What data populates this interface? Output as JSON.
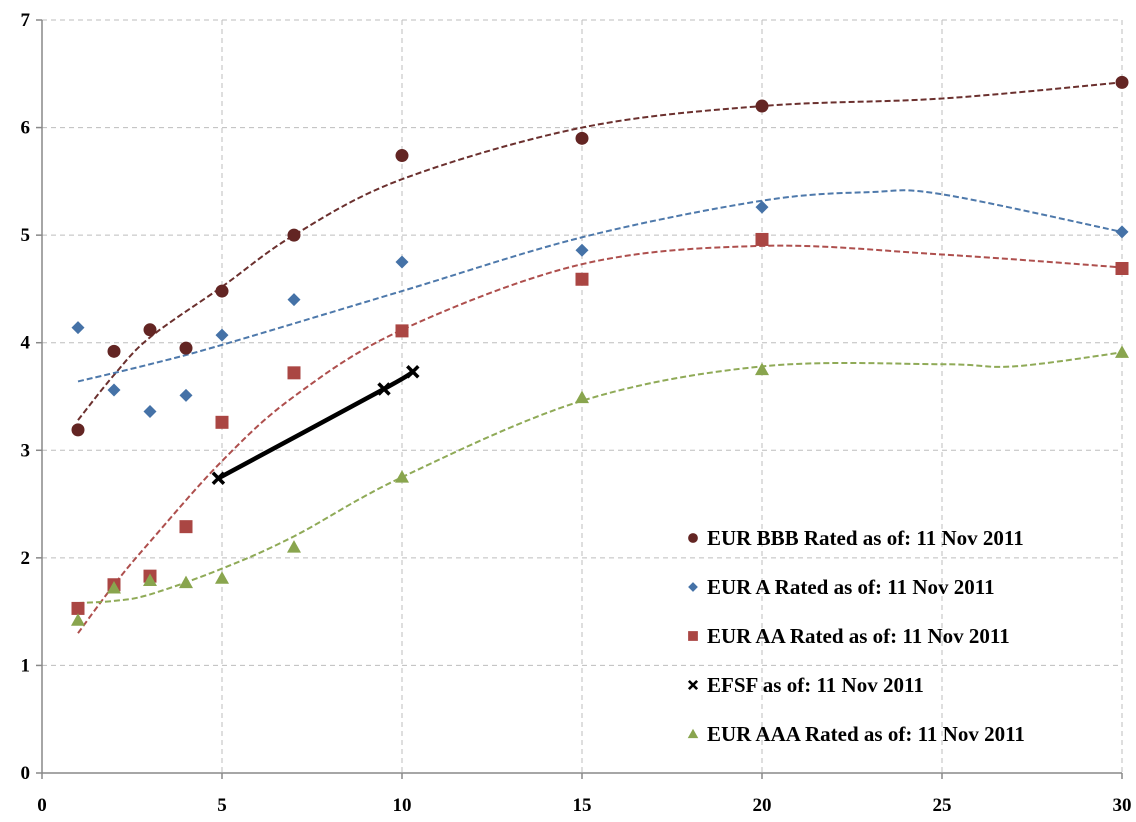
{
  "chart_data": {
    "type": "scatter",
    "xlim": [
      0,
      30
    ],
    "ylim": [
      0,
      7
    ],
    "x_ticks": [
      "0",
      "5",
      "10",
      "15",
      "20",
      "25",
      "30"
    ],
    "y_ticks": [
      "0",
      "1",
      "2",
      "3",
      "4",
      "5",
      "6",
      "7"
    ],
    "grid": true,
    "legend_placement": "bottom-right",
    "series": [
      {
        "name": "EUR BBB Rated as of: 11 Nov 2011",
        "marker": "circle",
        "color": "#632523",
        "x": [
          1,
          2,
          3,
          4,
          5,
          7,
          10,
          15,
          20,
          30
        ],
        "y": [
          3.19,
          3.92,
          4.12,
          3.95,
          4.48,
          5.0,
          5.74,
          5.9,
          6.2,
          6.42
        ],
        "trendline": {
          "style": "dashed",
          "x": [
            1,
            2,
            3,
            5,
            7,
            10,
            15,
            20,
            25,
            30
          ],
          "y": [
            3.28,
            3.7,
            4.05,
            4.52,
            5.0,
            5.52,
            6.0,
            6.2,
            6.27,
            6.42
          ]
        }
      },
      {
        "name": "EUR A Rated as of: 11 Nov 2011",
        "marker": "diamond",
        "color": "#4572A7",
        "x": [
          1,
          2,
          3,
          4,
          5,
          7,
          10,
          15,
          20,
          30
        ],
        "y": [
          4.14,
          3.56,
          3.36,
          3.51,
          4.07,
          4.4,
          4.75,
          4.86,
          5.26,
          5.03
        ],
        "trendline": {
          "style": "dashed",
          "x": [
            1,
            3,
            5,
            10,
            15,
            20,
            23,
            25,
            30
          ],
          "y": [
            3.64,
            3.8,
            3.98,
            4.48,
            4.98,
            5.32,
            5.4,
            5.38,
            5.03
          ]
        }
      },
      {
        "name": "EUR AA Rated as of: 11 Nov 2011",
        "marker": "square",
        "color": "#AA4643",
        "x": [
          1,
          2,
          3,
          4,
          5,
          7,
          10,
          15,
          20,
          30
        ],
        "y": [
          1.53,
          1.75,
          1.83,
          2.29,
          3.26,
          3.72,
          4.11,
          4.59,
          4.96,
          4.69
        ],
        "trendline": {
          "style": "dashed",
          "x": [
            1,
            2,
            3,
            5,
            7,
            10,
            15,
            20,
            25,
            30
          ],
          "y": [
            1.3,
            1.75,
            2.15,
            2.9,
            3.5,
            4.12,
            4.73,
            4.9,
            4.82,
            4.7
          ]
        }
      },
      {
        "name": "EFSF as of: 11 Nov 2011",
        "marker": "x",
        "color": "#000000",
        "x": [
          4.9,
          9.5,
          10.3
        ],
        "y": [
          2.74,
          3.57,
          3.73
        ],
        "line": "solid"
      },
      {
        "name": "EUR AAA Rated as of: 11 Nov 2011",
        "marker": "triangle",
        "color": "#89A54E",
        "x": [
          1,
          2,
          3,
          4,
          5,
          7,
          10,
          15,
          20,
          30
        ],
        "y": [
          1.42,
          1.72,
          1.79,
          1.77,
          1.81,
          2.1,
          2.75,
          3.49,
          3.75,
          3.91
        ],
        "trendline": {
          "style": "dashed",
          "x": [
            1,
            2,
            3,
            5,
            7,
            10,
            15,
            20,
            25,
            27,
            30
          ],
          "y": [
            1.58,
            1.6,
            1.66,
            1.9,
            2.2,
            2.75,
            3.46,
            3.78,
            3.8,
            3.78,
            3.91
          ]
        }
      }
    ]
  }
}
